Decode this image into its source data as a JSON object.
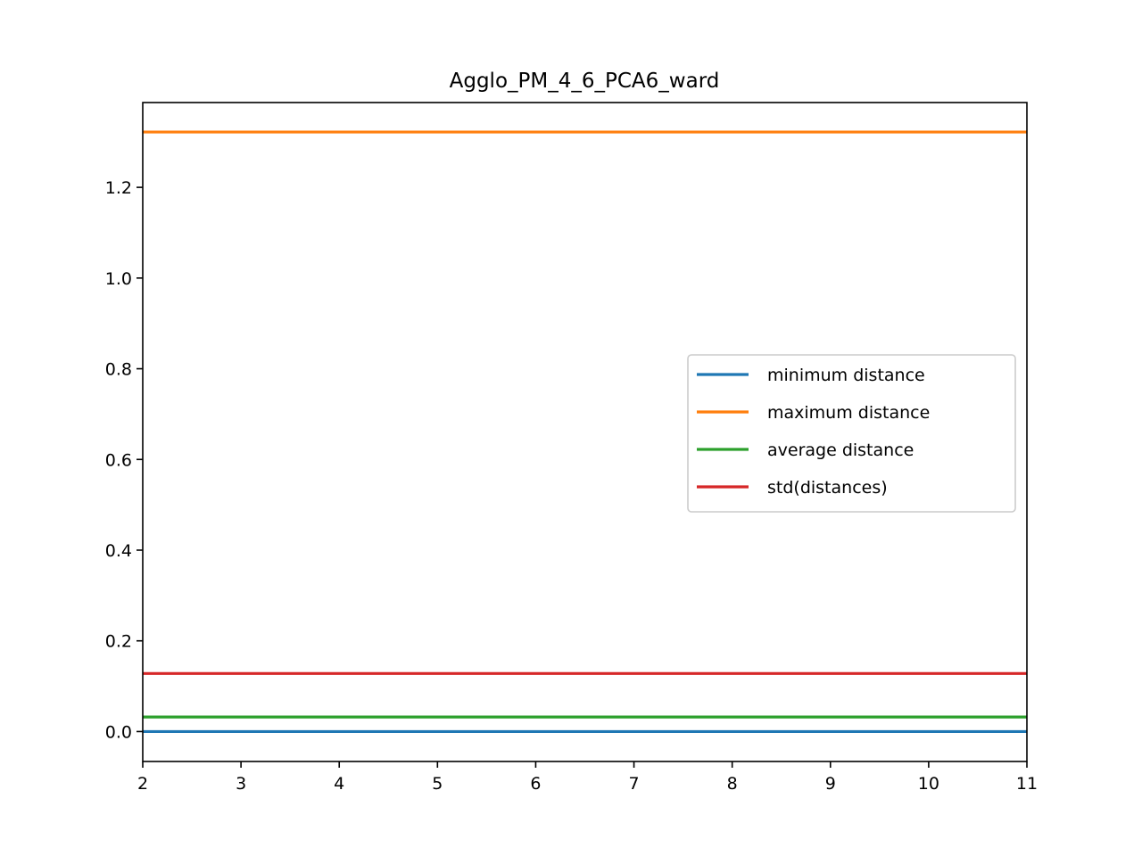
{
  "chart_data": {
    "type": "line",
    "title": "Agglo_PM_4_6_PCA6_ward",
    "xlabel": "",
    "ylabel": "",
    "x": [
      2,
      3,
      4,
      5,
      6,
      7,
      8,
      9,
      10,
      11
    ],
    "xlim": [
      2,
      11
    ],
    "ylim": [
      -0.066,
      1.387
    ],
    "xticks": [
      "2",
      "3",
      "4",
      "5",
      "6",
      "7",
      "8",
      "9",
      "10",
      "11"
    ],
    "yticks": [
      {
        "value": 0.0,
        "label": "0.0"
      },
      {
        "value": 0.2,
        "label": "0.2"
      },
      {
        "value": 0.4,
        "label": "0.4"
      },
      {
        "value": 0.6,
        "label": "0.6"
      },
      {
        "value": 0.8,
        "label": "0.8"
      },
      {
        "value": 1.0,
        "label": "1.0"
      },
      {
        "value": 1.2,
        "label": "1.2"
      }
    ],
    "grid": false,
    "legend_position": "center-right",
    "series": [
      {
        "name": "minimum distance",
        "color": "#1f77b4",
        "values": [
          0.0,
          0.0,
          0.0,
          0.0,
          0.0,
          0.0,
          0.0,
          0.0,
          0.0,
          0.0
        ]
      },
      {
        "name": "maximum distance",
        "color": "#ff7f0e",
        "values": [
          1.322,
          1.322,
          1.322,
          1.322,
          1.322,
          1.322,
          1.322,
          1.322,
          1.322,
          1.322
        ]
      },
      {
        "name": "average distance",
        "color": "#2ca02c",
        "values": [
          0.032,
          0.032,
          0.032,
          0.032,
          0.032,
          0.032,
          0.032,
          0.032,
          0.032,
          0.032
        ]
      },
      {
        "name": "std(distances)",
        "color": "#d62728",
        "values": [
          0.128,
          0.128,
          0.128,
          0.128,
          0.128,
          0.128,
          0.128,
          0.128,
          0.128,
          0.128
        ]
      }
    ]
  }
}
